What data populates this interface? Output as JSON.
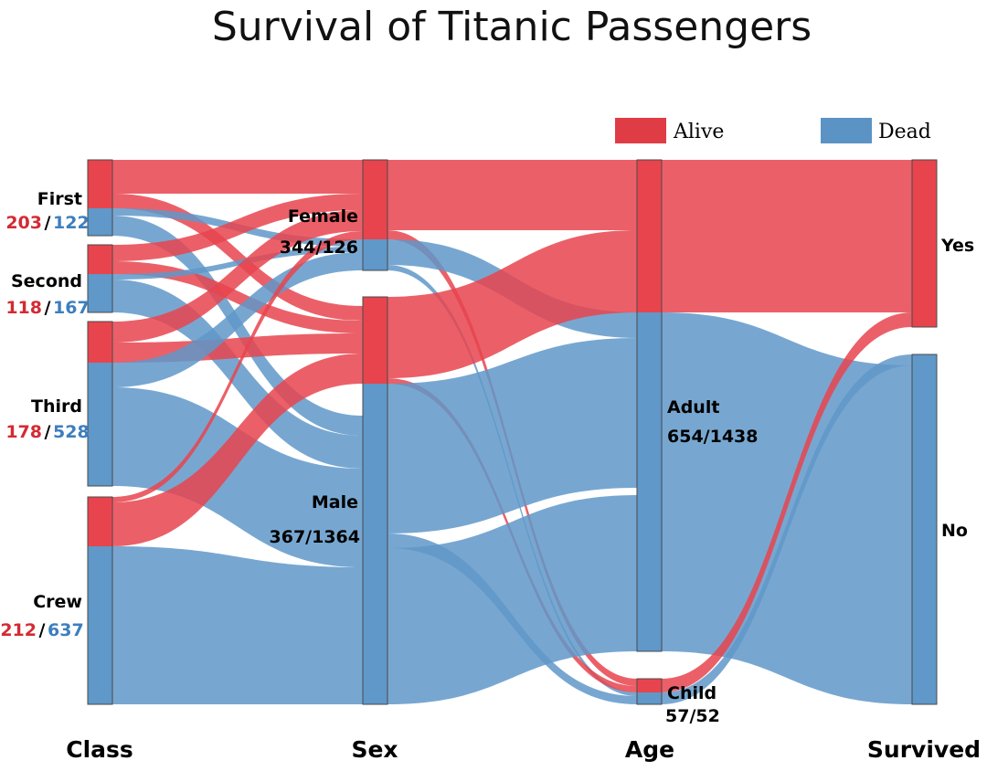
{
  "chart_data": {
    "type": "sankey",
    "title": "Survival of Titanic Passengers",
    "axes": [
      "Class",
      "Sex",
      "Age",
      "Survived"
    ],
    "legend": {
      "placement": "top-right",
      "items": [
        {
          "label": "Alive",
          "color": "#e03c46"
        },
        {
          "label": "Dead",
          "color": "#5b93c5"
        }
      ]
    },
    "colors": {
      "alive": "#e8444d",
      "dead": "#5f98c9",
      "alive_count": "#d42a33",
      "dead_count": "#3c7fbf"
    },
    "nodes": {
      "class": [
        {
          "label": "First",
          "alive": "203",
          "dead": "122"
        },
        {
          "label": "Second",
          "alive": "118",
          "dead": "167"
        },
        {
          "label": "Third",
          "alive": "178",
          "dead": "528"
        },
        {
          "label": "Crew",
          "alive": "212",
          "dead": "637"
        }
      ],
      "sex": [
        {
          "label": "Female",
          "counts": "344/126"
        },
        {
          "label": "Male",
          "counts": "367/1364"
        }
      ],
      "age": [
        {
          "label": "Adult",
          "counts": "654/1438"
        },
        {
          "label": "Child",
          "counts": "57/52"
        }
      ],
      "survived": [
        {
          "label": "Yes"
        },
        {
          "label": "No"
        }
      ]
    }
  }
}
